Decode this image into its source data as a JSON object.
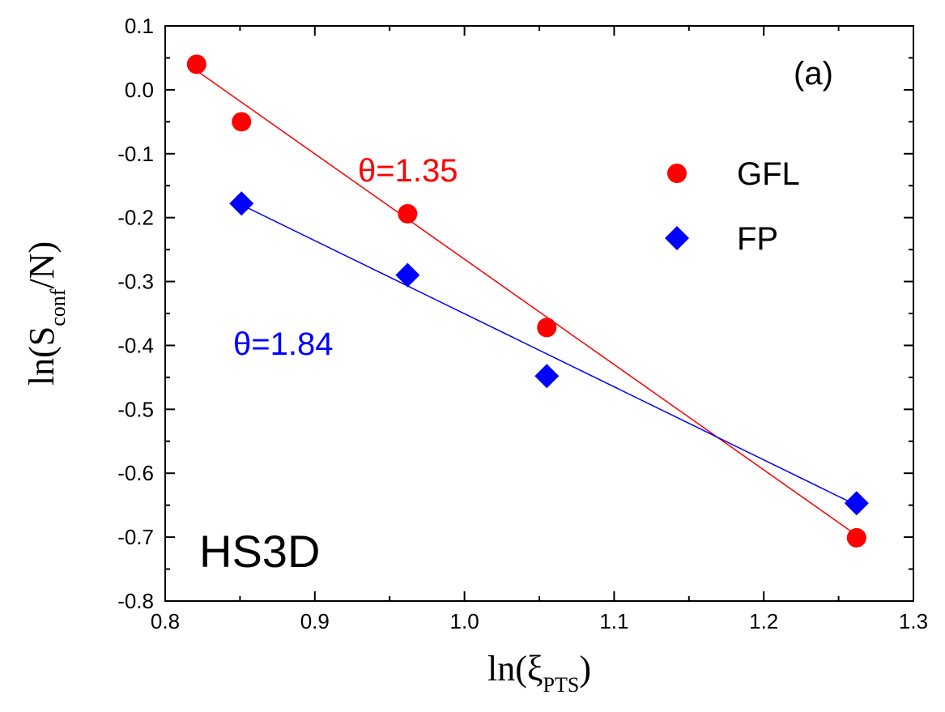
{
  "chart_data": {
    "type": "scatter",
    "xlim": [
      0.8,
      1.3
    ],
    "ylim": [
      -0.8,
      0.1
    ],
    "x_ticks": [
      "0.8",
      "0.9",
      "1.0",
      "1.1",
      "1.2",
      "1.3"
    ],
    "y_ticks": [
      "0.1",
      "0.0",
      "-0.1",
      "-0.2",
      "-0.3",
      "-0.4",
      "-0.5",
      "-0.6",
      "-0.7",
      "-0.8"
    ],
    "xlabel": {
      "main": "ln(ξ",
      "sub": "PTS",
      "close": ")"
    },
    "ylabel": {
      "main": "ln(S",
      "sub": "conf",
      "close": "/N)"
    },
    "panel_label": "(a)",
    "dataset_label": "HS3D",
    "legend_position": "top-right",
    "series": [
      {
        "name": "GFL",
        "marker": "circle",
        "color": "#ff0000",
        "x": [
          0.821,
          0.851,
          0.962,
          1.055,
          1.262
        ],
        "y": [
          0.04,
          -0.05,
          -0.194,
          -0.372,
          -0.701
        ],
        "fit": {
          "x": [
            0.821,
            1.262
          ],
          "y": [
            0.03,
            -0.697
          ]
        },
        "annotation": "θ=1.35"
      },
      {
        "name": "FP",
        "marker": "diamond",
        "color": "#0000ff",
        "x": [
          0.851,
          0.962,
          1.055,
          1.262
        ],
        "y": [
          -0.178,
          -0.29,
          -0.448,
          -0.647
        ],
        "fit": {
          "x": [
            0.851,
            1.262
          ],
          "y": [
            -0.18,
            -0.65
          ]
        },
        "annotation": "θ=1.84"
      }
    ]
  }
}
